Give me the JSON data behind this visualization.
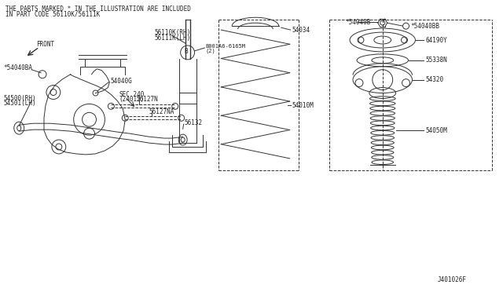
{
  "bg_color": "#ffffff",
  "line_color": "#333333",
  "text_color": "#222222",
  "fig_width": 6.4,
  "fig_height": 3.72,
  "dpi": 100,
  "header_text_line1": "THE PARTS MARKED * IN THE ILLUSTRATION ARE INCLUDED",
  "header_text_line2": "IN PART CODE 56110K/56111K",
  "footer_code": "J401026F",
  "front_label": "FRONT",
  "parts": {
    "56110K_RH": "56110K(RH)",
    "56111K_LH": "56111K(LH)",
    "54040G": "54040G",
    "B001A6_line1": "B001A6-6165M",
    "B001A6_line2": "(2)",
    "54500_RH": "54500(RH)",
    "54501_LH": "54501(LH)",
    "SEC240_line1": "SEC.240",
    "SEC240_line2": "(24012)",
    "56127NA": "56127NA",
    "56127N": "56127N",
    "56132": "56132",
    "54034": "54034",
    "54010M": "54010M",
    "54040B": "*54040B",
    "54040BB": "*54040BB",
    "64190Y": "64190Y",
    "55338N": "55338N",
    "54320": "54320",
    "54050M": "54050M",
    "54040BA": "*54040BA"
  }
}
